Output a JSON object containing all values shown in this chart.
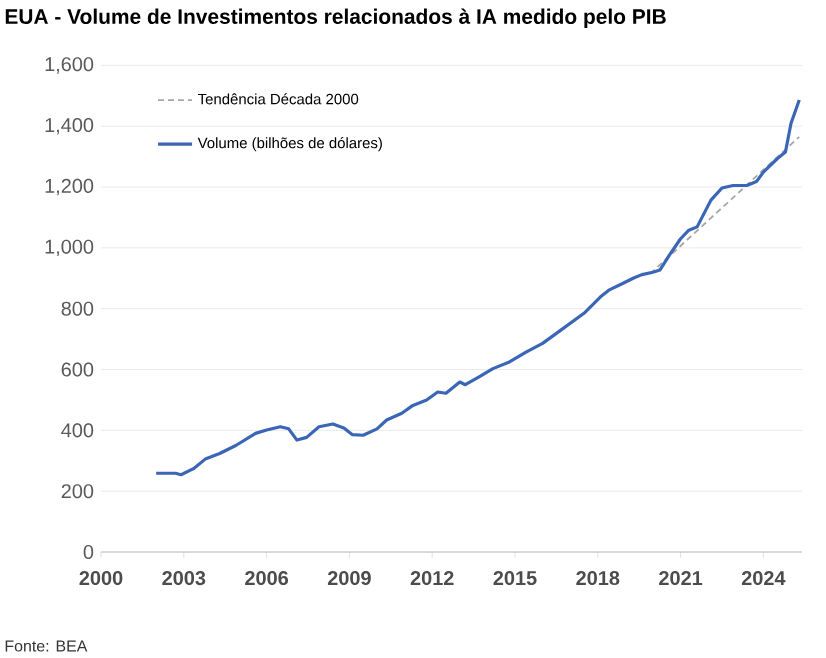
{
  "chart_data": {
    "type": "line",
    "title": "EUA - Volume de Investimentos relacionados à IA medido pelo PIB",
    "annotations": [
      "Fonte: BEA"
    ],
    "xlim": [
      2000,
      2025.4
    ],
    "xticks": [
      2000,
      2003,
      2006,
      2009,
      2012,
      2015,
      2018,
      2021,
      2024
    ],
    "ylim": [
      0,
      1600
    ],
    "yticks": [
      {
        "value": 0,
        "label": "0"
      },
      {
        "value": 200,
        "label": "200"
      },
      {
        "value": 400,
        "label": "400"
      },
      {
        "value": 600,
        "label": "600"
      },
      {
        "value": 800,
        "label": "800"
      },
      {
        "value": 1000,
        "label": "1,000"
      },
      {
        "value": 1200,
        "label": "1,200"
      },
      {
        "value": 1400,
        "label": "1,400"
      },
      {
        "value": 1600,
        "label": "1,600"
      }
    ],
    "grid": "y",
    "legend": "top left",
    "marker": "none",
    "series": [
      {
        "name": "Tendência Década 2000",
        "color": "#a6a6a6",
        "line_style": "dashed",
        "x": [
          2019.9,
          2025.3
        ],
        "values": [
          915,
          1365
        ]
      },
      {
        "name": "Volume (bilhões de dólares)",
        "color": "#3a66b5",
        "line_style": "solid",
        "x": [
          2002.0,
          2002.7,
          2002.9,
          2003.35,
          2003.8,
          2004.3,
          2004.9,
          2005.6,
          2006.0,
          2006.5,
          2006.8,
          2007.1,
          2007.45,
          2007.9,
          2008.4,
          2008.8,
          2009.1,
          2009.5,
          2010.0,
          2010.35,
          2010.9,
          2011.3,
          2011.8,
          2012.2,
          2012.5,
          2013.0,
          2013.2,
          2013.7,
          2014.2,
          2014.8,
          2015.4,
          2016.0,
          2016.5,
          2017.0,
          2017.5,
          2018.1,
          2018.4,
          2018.9,
          2019.3,
          2019.6,
          2020.0,
          2020.25,
          2020.6,
          2021.0,
          2021.3,
          2021.6,
          2022.1,
          2022.5,
          2022.9,
          2023.4,
          2023.75,
          2024.0,
          2024.5,
          2024.8,
          2025.0,
          2025.3
        ],
        "values": [
          259,
          259,
          254,
          274,
          307,
          324,
          351,
          390,
          401,
          412,
          405,
          368,
          377,
          412,
          421,
          408,
          386,
          384,
          405,
          434,
          456,
          482,
          500,
          526,
          522,
          559,
          550,
          576,
          603,
          625,
          657,
          686,
          719,
          752,
          785,
          839,
          861,
          883,
          901,
          912,
          920,
          927,
          977,
          1030,
          1058,
          1069,
          1157,
          1197,
          1205,
          1205,
          1218,
          1249,
          1293,
          1315,
          1409,
          1486
        ]
      }
    ]
  }
}
